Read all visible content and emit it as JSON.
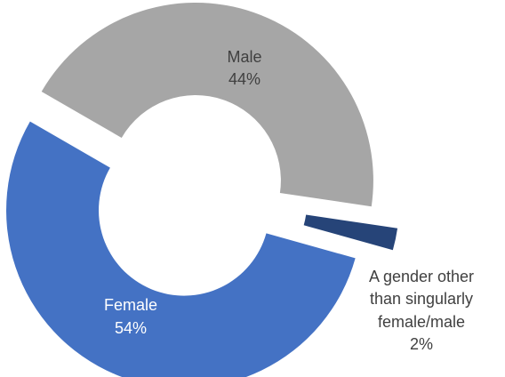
{
  "chart_data": {
    "type": "pie",
    "donut": true,
    "title": "",
    "slices": [
      {
        "category": "Male",
        "value_label": "44%",
        "value": 44,
        "color": "#a6a6a6",
        "label_color": "#404040"
      },
      {
        "category": "A gender other than singularly female/male",
        "value_label": "2%",
        "value": 2,
        "color": "#264478",
        "label_color": "#404040"
      },
      {
        "category": "Female",
        "value_label": "54%",
        "value": 54,
        "color": "#4472c4",
        "label_color": "#ffffff"
      }
    ],
    "slice_labels": {
      "male_lines": [
        "Male",
        "44%"
      ],
      "other_lines": [
        "A gender other",
        "than singularly",
        "female/male",
        "2%"
      ],
      "female_lines": [
        "Female",
        "54%"
      ]
    }
  }
}
